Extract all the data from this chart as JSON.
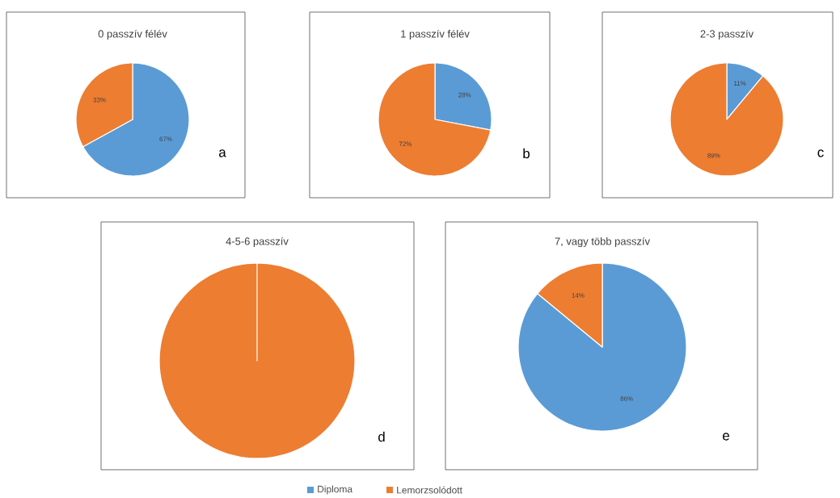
{
  "chart_data": [
    {
      "type": "pie",
      "title": "0 passzív félév",
      "categories": [
        null,
        null
      ],
      "values": [
        67,
        33
      ],
      "colors": [
        "#5b9bd5",
        "#ed7d31"
      ],
      "value_labels": [
        "67%",
        "33%"
      ],
      "annotations": [
        "a"
      ]
    },
    {
      "type": "pie",
      "title": "1 passzív félév",
      "categories": [
        null,
        null
      ],
      "values": [
        28,
        72
      ],
      "colors": [
        "#5b9bd5",
        "#ed7d31"
      ],
      "value_labels": [
        "28%",
        "72%"
      ],
      "annotations": [
        "b"
      ]
    },
    {
      "type": "pie",
      "title": "2-3 passzív",
      "categories": [
        null,
        null
      ],
      "values": [
        11,
        89
      ],
      "colors": [
        "#5b9bd5",
        "#ed7d31"
      ],
      "value_labels": [
        "11%",
        "89%"
      ],
      "annotations": [
        "c"
      ]
    },
    {
      "type": "pie",
      "title": "4-5-6 passzív",
      "categories": [
        null,
        null
      ],
      "values": [
        0,
        100
      ],
      "colors": [
        "#5b9bd5",
        "#ed7d31"
      ],
      "value_labels": [
        null,
        null
      ],
      "annotations": [
        "d"
      ]
    },
    {
      "type": "pie",
      "title": "7, vagy több passzív",
      "categories": [
        "Diploma",
        "Lemorzsolódott"
      ],
      "values": [
        86,
        14
      ],
      "colors": [
        "#5b9bd5",
        "#ed7d31"
      ],
      "value_labels": [
        "86%",
        "14%"
      ],
      "annotations": [
        "e"
      ],
      "legend": "bottom"
    }
  ]
}
